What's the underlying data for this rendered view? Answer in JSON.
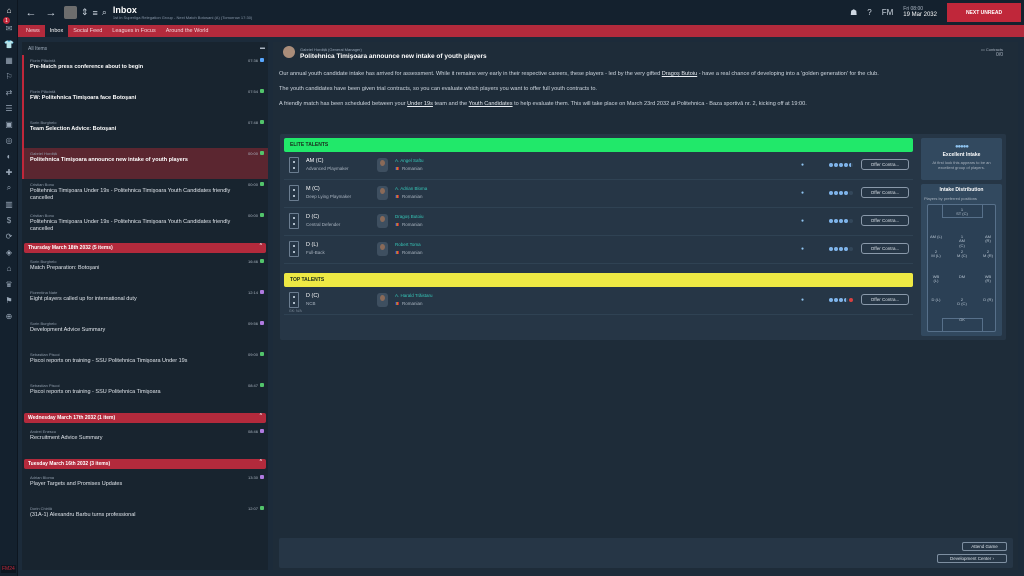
{
  "rail": {
    "notif": "1",
    "bottom_tag": "FM24"
  },
  "topbar": {
    "title": "Inbox",
    "subtitle": "1st in Superliga Relegation Group - Next Match Botosani (A) (Tomorrow 17:30)",
    "day": "Fri 08:00",
    "date": "19 Mar 2032",
    "fm_label": "FM",
    "next_button": "NEXT UNREAD"
  },
  "tabs": [
    "News",
    "Inbox",
    "Social Feed",
    "Leagues in Focus",
    "Around the World"
  ],
  "left": {
    "header": "All Items",
    "groups_top": [
      {
        "sender": "Florin Plăcintă",
        "subject": "Pre-Match press conference about to begin",
        "time": "07:36",
        "tag": "blue",
        "state": "unread"
      },
      {
        "sender": "Florin Plăcintă",
        "subject": "FW: Politehnica Timişoara face Botoşani",
        "time": "07:54",
        "tag": "green",
        "state": "unread"
      },
      {
        "sender": "Sorin Burghelo",
        "subject": "Team Selection Advice: Botoşani",
        "time": "07:48",
        "tag": "green",
        "state": "unread"
      },
      {
        "sender": "Gabriel Hordiță",
        "subject": "Politehnica Timişoara announce new intake of youth players",
        "time": "00:00",
        "tag": "green",
        "state": "selected"
      },
      {
        "sender": "Cristian Bonu",
        "subject": "Politehnica Timişoara Under 19s - Politehnica Timişoara Youth Candidates friendly cancelled",
        "time": "00:00",
        "tag": "green",
        "state": "read"
      },
      {
        "sender": "Cristian Bonu",
        "subject": "Politehnica Timişoara Under 19s - Politehnica Timişoara Youth Candidates friendly cancelled",
        "time": "00:00",
        "tag": "green",
        "state": "read"
      }
    ],
    "day1": "Thursday March 18th 2032 (5 items)",
    "group1": [
      {
        "sender": "Sorin Burghelo",
        "subject": "Match Preparation: Botoşani",
        "time": "16:46",
        "tag": "green",
        "state": "read"
      },
      {
        "sender": "Florentina Nate",
        "subject": "Eight players called up for international duty",
        "time": "12:14",
        "tag": "purple",
        "state": "read"
      },
      {
        "sender": "Sorin Burghelo",
        "subject": "Development Advice Summary",
        "time": "09:56",
        "tag": "purple",
        "state": "read"
      },
      {
        "sender": "Sebastian Piscoi",
        "subject": "Piscoi reports on training - SSU Politehnica Timişoara Under 19s",
        "time": "09:00",
        "tag": "green",
        "state": "read"
      },
      {
        "sender": "Sebastian Piscoi",
        "subject": "Piscoi reports on training - SSU Politehnica Timişoara",
        "time": "08:47",
        "tag": "green",
        "state": "read"
      }
    ],
    "day2": "Wednesday March 17th 2032 (1 item)",
    "group2": [
      {
        "sender": "Andrei Enescu",
        "subject": "Recruitment Advice Summary",
        "time": "08:46",
        "tag": "purple",
        "state": "read"
      }
    ],
    "day3": "Tuesday March 16th 2032 (3 items)",
    "group3": [
      {
        "sender": "Adrian Bloma",
        "subject": "Player Targets and Promises Updates",
        "time": "13:30",
        "tag": "purple",
        "state": "read"
      },
      {
        "sender": "Dorin Chirilă",
        "subject": "(31A-1) Alexandru Barbu turns professional",
        "time": "12:07",
        "tag": "green",
        "state": "read"
      }
    ]
  },
  "message": {
    "from": "Gabriel Hordiță  (General Manager)",
    "subject": "Politehnica Timişoara announce new intake of youth players",
    "contracts_label": "Contracts",
    "contracts_value": "0/0",
    "p1a": "Our annual youth candidate intake has arrived for assessment. While it remains very early in their respective careers, these players - led by the very gifted ",
    "p1link": "Dragoș Butoiu",
    "p1b": " - have a real chance of developing into a 'golden generation' for the club.",
    "p2": "The youth candidates have been given trial contracts, so you can evaluate which players you want to offer full youth contracts to.",
    "p3a": "A friendly match has been scheduled between your ",
    "p3link1": "Under 19s",
    "p3b": " team and the ",
    "p3link2": "Youth Candidates",
    "p3c": " to help evaluate them. This will take place on March 23rd 2032 at Politehnica - Baza sportivă nr. 2, kicking off at 19:00."
  },
  "talents": {
    "elite_label": "ELITE TALENTS",
    "top_label": "TOP TALENTS",
    "elite": [
      {
        "pos": "AM (C)",
        "role": "Advanced Playmaker",
        "name": "A. Angel Saftu",
        "nat": "Romanian",
        "stars": "4.5",
        "offer": "Offer Contra..."
      },
      {
        "pos": "M (C)",
        "role": "Deep Lying Playmaker",
        "name": "A. Adrian Bloma",
        "nat": "Romanian",
        "stars": "4",
        "offer": "Offer Contra..."
      },
      {
        "pos": "D (C)",
        "role": "Central Defender",
        "name": "Dragoș Butoiu",
        "nat": "Romanian",
        "stars": "4",
        "offer": "Offer Contra..."
      },
      {
        "pos": "D (L)",
        "role": "Full-Back",
        "name": "Robert Toma",
        "nat": "Romanian",
        "stars": "4",
        "offer": "Offer Contra..."
      }
    ],
    "top": [
      {
        "pos": "D (C)",
        "role": "NCB",
        "name": "A. Harald Trăistaru",
        "nat": "Romanian",
        "stars": "3.5",
        "offer": "Offer Contra...",
        "note": "GK: N/A"
      }
    ]
  },
  "intake": {
    "title": "Excellent Intake",
    "desc": "At first look this appears to be an excellent group of players.",
    "dist_title": "Intake Distribution",
    "dist_desc": "Players by preferred positions",
    "zones": [
      {
        "label": "ST (C)",
        "count": "1"
      },
      {
        "label": "AM (L)",
        "count": ""
      },
      {
        "label": "AM (C)",
        "count": "1"
      },
      {
        "label": "AM (R)",
        "count": ""
      },
      {
        "label": "M (L)",
        "count": "2"
      },
      {
        "label": "M (C)",
        "count": "2"
      },
      {
        "label": "M (R)",
        "count": "2"
      },
      {
        "label": "WB (L)",
        "count": ""
      },
      {
        "label": "DM",
        "count": ""
      },
      {
        "label": "WB (R)",
        "count": ""
      },
      {
        "label": "D (L)",
        "count": ""
      },
      {
        "label": "D (C)",
        "count": "2"
      },
      {
        "label": "D (R)",
        "count": ""
      },
      {
        "label": "GK",
        "count": ""
      }
    ]
  },
  "compose": {
    "attend": "Attend Game",
    "dev": "Development Center"
  }
}
